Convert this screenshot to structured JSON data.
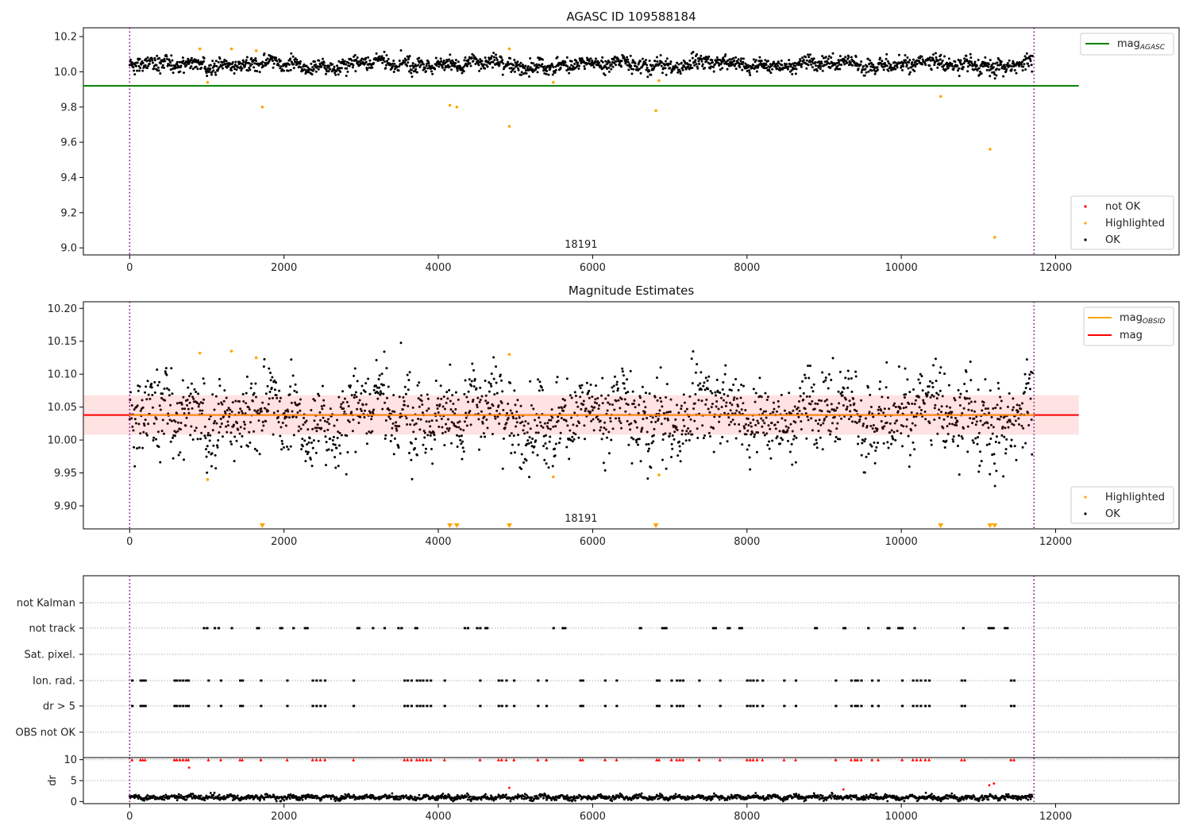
{
  "chart_data": [
    {
      "type": "scatter",
      "title": "AGASC ID 109588184",
      "xlim": [
        -600,
        13600
      ],
      "ylim": [
        8.96,
        10.25
      ],
      "x_ticks": [
        0,
        2000,
        4000,
        6000,
        8000,
        10000,
        12000
      ],
      "y_ticks": [
        9.0,
        9.2,
        9.4,
        9.6,
        9.8,
        10.0,
        10.2
      ],
      "y_tick_labels": [
        "9.0",
        "9.2",
        "9.4",
        "9.6",
        "9.8",
        "10.0",
        "10.2"
      ],
      "obs_range_x": [
        0,
        11720
      ],
      "obs_label": "18191",
      "obs_label_x": 5850,
      "ok_band": {
        "x_start": 0,
        "x_end": 11700,
        "center": 10.04,
        "amplitude": 0.035
      },
      "highlighted_points": [
        {
          "x": 910,
          "y": 10.13
        },
        {
          "x": 1010,
          "y": 9.94
        },
        {
          "x": 1320,
          "y": 10.13
        },
        {
          "x": 1640,
          "y": 10.12
        },
        {
          "x": 1720,
          "y": 9.8
        },
        {
          "x": 4150,
          "y": 9.81
        },
        {
          "x": 4240,
          "y": 9.8
        },
        {
          "x": 4920,
          "y": 10.13
        },
        {
          "x": 4920,
          "y": 9.69
        },
        {
          "x": 5490,
          "y": 9.94
        },
        {
          "x": 6820,
          "y": 9.78
        },
        {
          "x": 6860,
          "y": 9.95
        },
        {
          "x": 10510,
          "y": 9.86
        },
        {
          "x": 11150,
          "y": 9.56
        },
        {
          "x": 11210,
          "y": 9.06
        }
      ],
      "mag_agasc": {
        "y": 9.92,
        "x_range": [
          -600,
          12300
        ],
        "color": "#008000"
      },
      "legend_lines": [
        {
          "label": "mag",
          "sub": "AGASC",
          "color": "#008000"
        }
      ],
      "legend_points": [
        {
          "label": "not OK",
          "color": "#ff0000"
        },
        {
          "label": "Highlighted",
          "color": "#ffa500"
        },
        {
          "label": "OK",
          "color": "#000000"
        }
      ]
    },
    {
      "type": "scatter",
      "title": "Magnitude Estimates",
      "xlim": [
        -600,
        13600
      ],
      "ylim": [
        9.865,
        10.21
      ],
      "x_ticks": [
        0,
        2000,
        4000,
        6000,
        8000,
        10000,
        12000
      ],
      "y_ticks": [
        9.9,
        9.95,
        10.0,
        10.05,
        10.1,
        10.15,
        10.2
      ],
      "y_tick_labels": [
        "9.90",
        "9.95",
        "10.00",
        "10.05",
        "10.10",
        "10.15",
        "10.20"
      ],
      "obs_range_x": [
        0,
        11720
      ],
      "obs_label": "18191",
      "obs_label_x": 5850,
      "ok_band": {
        "x_start": 0,
        "x_end": 11700,
        "center": 10.035,
        "amplitude": 0.045
      },
      "mag": {
        "y": 10.038,
        "x_range": [
          -600,
          12300
        ],
        "color": "#ff0000"
      },
      "mag_band": {
        "y_low": 10.008,
        "y_high": 10.068
      },
      "mag_obsid": {
        "y": 10.038,
        "color": "#ffa500"
      },
      "highlighted_points": [
        {
          "x": 910,
          "y": 10.132
        },
        {
          "x": 1010,
          "y": 9.94
        },
        {
          "x": 1320,
          "y": 10.135
        },
        {
          "x": 1640,
          "y": 10.125
        },
        {
          "x": 4920,
          "y": 10.13
        },
        {
          "x": 5490,
          "y": 9.944
        },
        {
          "x": 6860,
          "y": 9.947
        }
      ],
      "below_range_markers": [
        1720,
        4150,
        4240,
        4920,
        6820,
        10510,
        11150,
        11210
      ],
      "legend_lines": [
        {
          "label": "mag",
          "sub": "OBSID",
          "color": "#ffa500"
        },
        {
          "label": "mag",
          "sub": "",
          "color": "#ff0000"
        }
      ],
      "legend_points": [
        {
          "label": "Highlighted",
          "color": "#ffa500"
        },
        {
          "label": "OK",
          "color": "#000000"
        }
      ]
    },
    {
      "type": "scatter",
      "title": "",
      "xlim": [
        -600,
        13600
      ],
      "categories": [
        "not Kalman",
        "not track",
        "Sat. pixel.",
        "Ion. rad.",
        "dr > 5",
        "OBS not OK"
      ],
      "obs_range_x": [
        0,
        11720
      ],
      "flags": {
        "not track": [
          960,
          1000,
          1100,
          1150,
          1320,
          1650,
          1670,
          1950,
          1970,
          2120,
          2270,
          2300,
          2950,
          2970,
          3150,
          3300,
          3480,
          3520,
          3700,
          3720,
          4340,
          4380,
          4500,
          4540,
          4610,
          4630,
          5490,
          5610,
          5640,
          6610,
          6620,
          6900,
          6930,
          6950,
          7560,
          7590,
          7750,
          7770,
          7900,
          7930,
          8880,
          8900,
          9250,
          9270,
          9570,
          9820,
          9840,
          9960,
          9990,
          10010,
          10170,
          10800,
          11130,
          11160,
          11190,
          11340,
          11370
        ],
        "Ion. rad.": [
          30,
          140,
          170,
          200,
          580,
          610,
          650,
          690,
          730,
          760,
          1020,
          1180,
          1430,
          1460,
          1700,
          2040,
          2370,
          2420,
          2470,
          2530,
          2900,
          3560,
          3600,
          3650,
          3720,
          3760,
          3800,
          3850,
          3900,
          4080,
          4540,
          4780,
          4820,
          4880,
          4980,
          5290,
          5400,
          5840,
          5870,
          6160,
          6310,
          6830,
          6860,
          7020,
          7090,
          7130,
          7170,
          7380,
          7650,
          8000,
          8040,
          8080,
          8130,
          8200,
          8480,
          8630,
          9150,
          9350,
          9400,
          9430,
          9480,
          9620,
          9700,
          10010,
          10150,
          10200,
          10250,
          10310,
          10360,
          10780,
          10820,
          11420,
          11460
        ],
        "dr > 5": [
          30,
          140,
          170,
          200,
          580,
          610,
          650,
          690,
          730,
          760,
          1020,
          1180,
          1430,
          1460,
          1700,
          2040,
          2370,
          2420,
          2470,
          2530,
          2900,
          3560,
          3600,
          3650,
          3720,
          3760,
          3800,
          3850,
          3900,
          4080,
          4540,
          4780,
          4820,
          4880,
          4980,
          5290,
          5400,
          5840,
          5870,
          6160,
          6310,
          6830,
          6860,
          7020,
          7090,
          7130,
          7170,
          7380,
          7650,
          8000,
          8040,
          8080,
          8130,
          8200,
          8480,
          8630,
          9150,
          9350,
          9400,
          9430,
          9480,
          9620,
          9700,
          10010,
          10150,
          10200,
          10250,
          10310,
          10360,
          10780,
          10820,
          11420,
          11460
        ]
      }
    },
    {
      "type": "scatter",
      "title": "",
      "ylabel": "dr",
      "xlim": [
        -600,
        13600
      ],
      "ylim": [
        -0.5,
        10.5
      ],
      "x_ticks": [
        0,
        2000,
        4000,
        6000,
        8000,
        10000,
        12000
      ],
      "y_ticks": [
        0,
        5,
        10
      ],
      "y_tick_labels": [
        "0",
        "5",
        "10"
      ],
      "obs_range_x": [
        0,
        11720
      ],
      "ok_band": {
        "x_start": 0,
        "x_end": 11700,
        "center": 1.0,
        "amplitude": 0.6
      },
      "clipped_markers_y": 10,
      "clipped_markers_x": [
        30,
        140,
        170,
        200,
        580,
        610,
        650,
        690,
        730,
        760,
        1020,
        1180,
        1430,
        1460,
        1700,
        2040,
        2370,
        2420,
        2470,
        2530,
        2900,
        3560,
        3600,
        3650,
        3720,
        3760,
        3800,
        3850,
        3900,
        4080,
        4540,
        4780,
        4820,
        4880,
        4980,
        5290,
        5400,
        5840,
        5870,
        6160,
        6310,
        6830,
        6860,
        7020,
        7090,
        7130,
        7170,
        7380,
        7650,
        8000,
        8040,
        8080,
        8130,
        8200,
        8480,
        8630,
        9150,
        9350,
        9400,
        9430,
        9480,
        9620,
        9700,
        10010,
        10150,
        10200,
        10250,
        10310,
        10360,
        10780,
        10820,
        11420,
        11460
      ],
      "red_points": [
        {
          "x": 770,
          "y": 8.1
        },
        {
          "x": 4920,
          "y": 3.3
        },
        {
          "x": 9250,
          "y": 2.9
        },
        {
          "x": 11140,
          "y": 3.9
        },
        {
          "x": 11200,
          "y": 4.3
        }
      ]
    }
  ]
}
